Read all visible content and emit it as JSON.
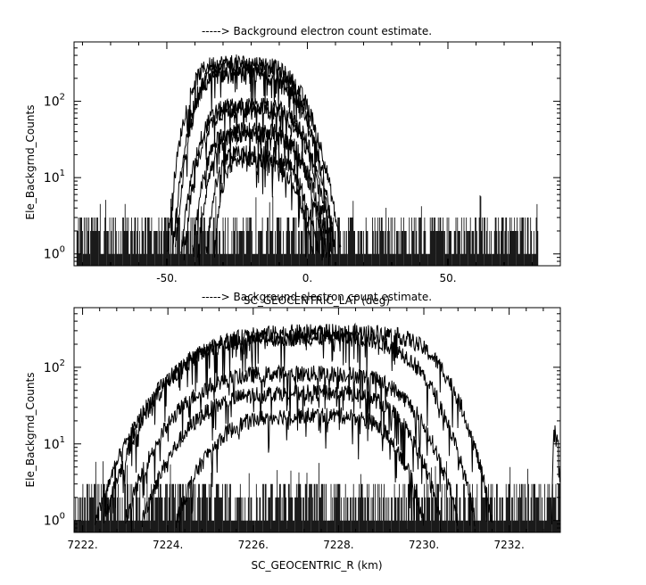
{
  "chart_data": [
    {
      "type": "line",
      "title": "-----> Background electron count estimate.",
      "xlabel": "SC_GEOCENTRIC_LAT (deg)",
      "ylabel": "Ele_Backgrnd_Counts",
      "yscale": "log",
      "xlim": [
        -83,
        90
      ],
      "ylim": [
        0.7,
        600
      ],
      "xticks": [
        -50,
        0,
        50
      ],
      "xtick_labels": [
        "-50.",
        "0.",
        "50."
      ],
      "yticks": [
        1,
        10,
        100
      ],
      "ytick_labels": [
        "10^0",
        "10^1",
        "10^2"
      ],
      "noise_floor": {
        "x_range": [
          -82,
          82
        ],
        "levels": [
          1,
          2,
          3
        ]
      },
      "series": [
        {
          "x_range": [
            -50,
            12
          ],
          "peak_x": -27,
          "peak_y": 360
        },
        {
          "x_range": [
            -48,
            10
          ],
          "peak_x": -25,
          "peak_y": 300
        },
        {
          "x_range": [
            -47,
            10
          ],
          "peak_x": -26,
          "peak_y": 250
        },
        {
          "x_range": [
            -45,
            9
          ],
          "peak_x": -22,
          "peak_y": 95
        },
        {
          "x_range": [
            -44,
            8
          ],
          "peak_x": -22,
          "peak_y": 85
        },
        {
          "x_range": [
            -41,
            7
          ],
          "peak_x": -22,
          "peak_y": 45
        },
        {
          "x_range": [
            -39,
            6
          ],
          "peak_x": -21,
          "peak_y": 40
        },
        {
          "x_range": [
            -36,
            4
          ],
          "peak_x": -22,
          "peak_y": 22
        },
        {
          "x_range": [
            -33,
            2
          ],
          "peak_x": -22,
          "peak_y": 18
        }
      ]
    },
    {
      "type": "line",
      "title": "-----> Background electron count estimate.",
      "xlabel": "SC_GEOCENTRIC_R (km)",
      "ylabel": "Ele_Backgrnd_Counts",
      "yscale": "log",
      "xlim": [
        7221.8,
        7233.2
      ],
      "ylim": [
        0.7,
        600
      ],
      "xticks": [
        7222,
        7224,
        7226,
        7228,
        7230,
        7232
      ],
      "xtick_labels": [
        "7222.",
        "7224.",
        "7226.",
        "7228.",
        "7230.",
        "7232."
      ],
      "yticks": [
        1,
        10,
        100
      ],
      "ytick_labels": [
        "10^0",
        "10^1",
        "10^2"
      ],
      "noise_floor": {
        "x_range": [
          7221.8,
          7233.2
        ],
        "levels": [
          1,
          2,
          3
        ]
      },
      "series": [
        {
          "x_range": [
            7222.3,
            7231.6
          ],
          "peak_x": 7228.1,
          "peak_y": 320
        },
        {
          "x_range": [
            7222.5,
            7231.2
          ],
          "peak_x": 7227.5,
          "peak_y": 270
        },
        {
          "x_range": [
            7223.0,
            7230.8
          ],
          "peak_x": 7227.3,
          "peak_y": 90
        },
        {
          "x_range": [
            7223.4,
            7230.4
          ],
          "peak_x": 7227.4,
          "peak_y": 50
        },
        {
          "x_range": [
            7224.2,
            7230.0
          ],
          "peak_x": 7227.5,
          "peak_y": 25
        },
        {
          "x_range": [
            7233.0,
            7233.2
          ],
          "peak_x": 7233.1,
          "peak_y": 15
        }
      ]
    }
  ]
}
